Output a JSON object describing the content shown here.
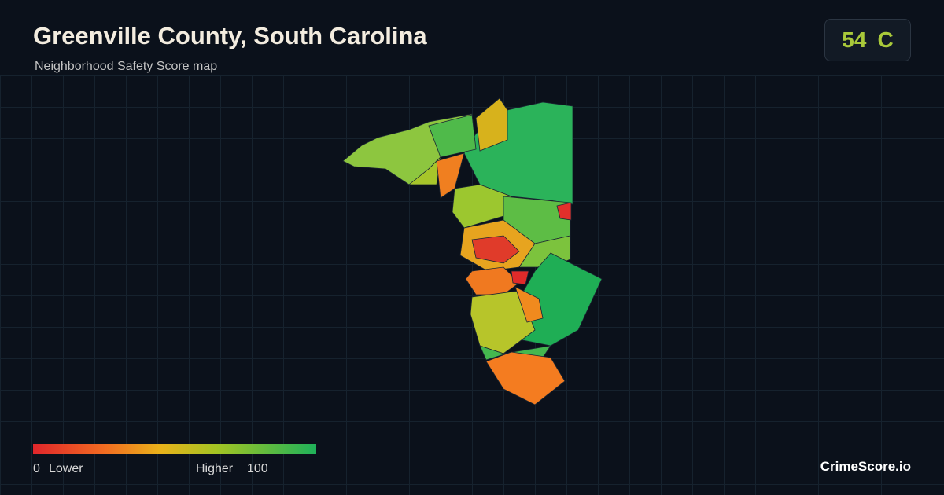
{
  "header": {
    "title": "Greenville County, South Carolina",
    "subtitle": "Neighborhood Safety Score map"
  },
  "score": {
    "value": "54",
    "grade": "C"
  },
  "legend": {
    "min": "0",
    "min_label": "Lower",
    "max_label": "Higher",
    "max": "100"
  },
  "brand": "CrimeScore.io"
}
